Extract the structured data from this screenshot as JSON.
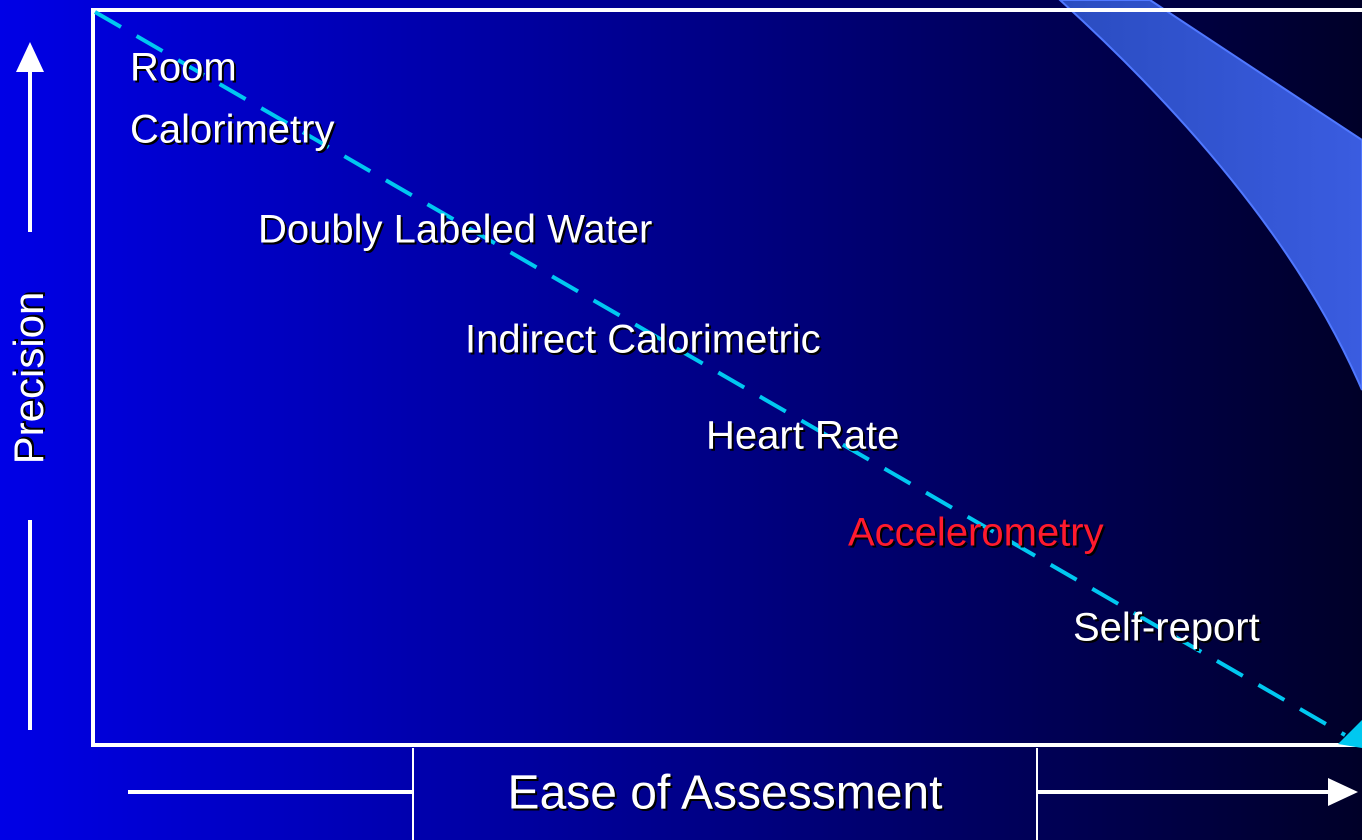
{
  "axes": {
    "y_label": "Precision",
    "x_label": "Ease of Assessment"
  },
  "methods": [
    {
      "lines": [
        "Room",
        "Calorimetry"
      ]
    },
    {
      "lines": [
        "Doubly Labeled Water"
      ]
    },
    {
      "lines": [
        "Indirect Calorimetric"
      ]
    },
    {
      "lines": [
        "Heart Rate"
      ]
    },
    {
      "lines": [
        "Accelerometry"
      ],
      "highlight": true
    },
    {
      "lines": [
        "Self-report"
      ]
    }
  ]
}
